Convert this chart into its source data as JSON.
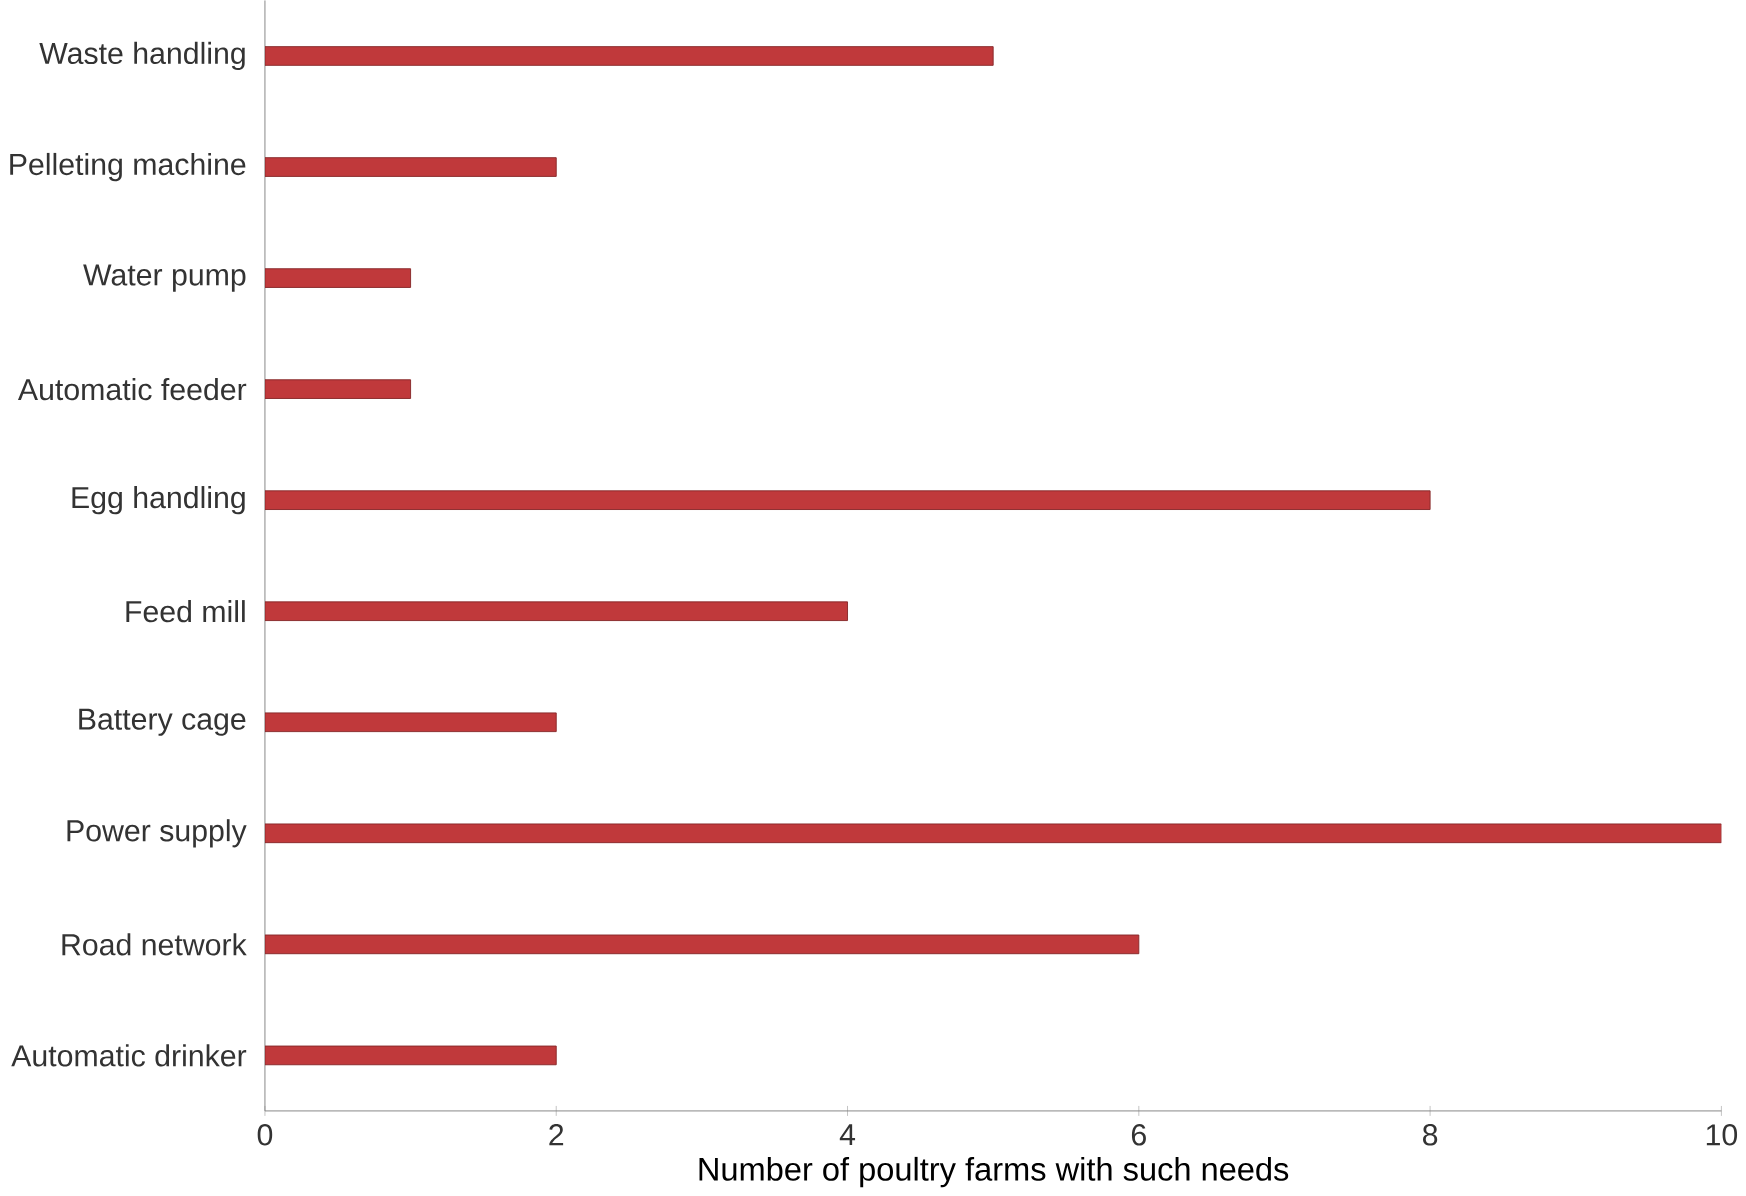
{
  "chart_data": {
    "type": "bar",
    "orientation": "horizontal",
    "xlabel": "Number of poultry farms with such needs",
    "categories": [
      "Waste handling",
      "Pelleting machine",
      "Water pump",
      "Automatic feeder",
      "Egg handling",
      "Feed mill",
      "Battery cage",
      "Power supply",
      "Road network",
      "Automatic drinker"
    ],
    "values": [
      5,
      2,
      1,
      1,
      8,
      4,
      2,
      10,
      6,
      2
    ],
    "color": "#c0393b",
    "xlim": [
      0,
      10
    ],
    "xticks": [
      0,
      2,
      4,
      6,
      8,
      10
    ],
    "grid": false
  }
}
